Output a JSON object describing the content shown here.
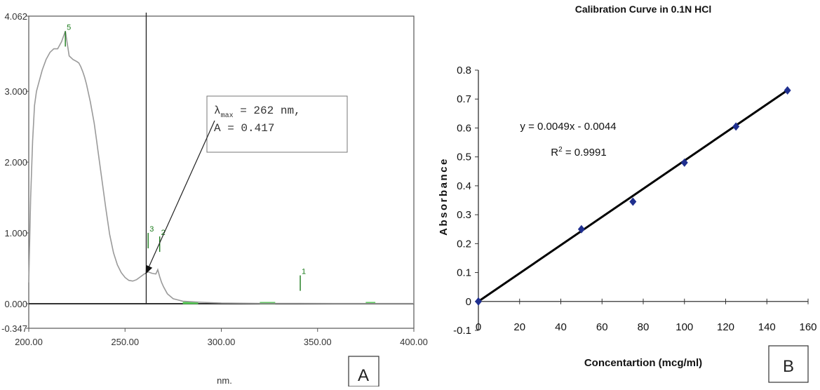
{
  "chart_data": [
    {
      "panel": "A",
      "type": "line",
      "title": "",
      "xlabel": "nm.",
      "ylabel": "",
      "xlim": [
        200,
        400
      ],
      "ylim": [
        -0.347,
        4.062
      ],
      "x_ticks": [
        "200.00",
        "250.00",
        "300.00",
        "350.00",
        "400.00"
      ],
      "y_ticks": [
        "4.062",
        "3.000",
        "2.000",
        "1.000",
        "0.000",
        "-0.347"
      ],
      "y_tick_values": [
        4.062,
        3.0,
        2.0,
        1.0,
        0.0,
        -0.347
      ],
      "marker_line_x": 261,
      "peak_labels": [
        "5",
        "3",
        "2",
        "1"
      ],
      "peak_positions": [
        [
          219,
          3.85
        ],
        [
          262,
          1.0
        ],
        [
          268,
          0.95
        ],
        [
          341,
          0.4
        ]
      ],
      "annotation": {
        "lambda": "λ",
        "sub": "max",
        "rest": " = 262 nm,",
        "line2": "A = 0.417",
        "target_x": 260,
        "target_y": 0.42
      },
      "series": [
        {
          "x": [
            200,
            201,
            202,
            203,
            204,
            205,
            207,
            209,
            211,
            213,
            215,
            217,
            219,
            221,
            223,
            225,
            226,
            227,
            228,
            229,
            230,
            232,
            234,
            235,
            236,
            238,
            240,
            242,
            244,
            246,
            248,
            250,
            252,
            254,
            256,
            258,
            260,
            262,
            264,
            266,
            267,
            268,
            269,
            270,
            272,
            275,
            280,
            290,
            300,
            320,
            340,
            360,
            380,
            400
          ],
          "values": [
            0.3,
            1.5,
            2.3,
            2.8,
            3.0,
            3.1,
            3.3,
            3.45,
            3.55,
            3.6,
            3.6,
            3.7,
            3.85,
            3.5,
            3.45,
            3.42,
            3.4,
            3.35,
            3.28,
            3.2,
            3.1,
            2.85,
            2.55,
            2.35,
            2.15,
            1.75,
            1.35,
            0.98,
            0.72,
            0.55,
            0.44,
            0.37,
            0.33,
            0.32,
            0.34,
            0.38,
            0.42,
            0.45,
            0.43,
            0.42,
            0.48,
            0.38,
            0.3,
            0.24,
            0.14,
            0.07,
            0.035,
            0.02,
            0.01,
            0.005,
            0.005,
            0.003,
            0.003,
            0.003
          ]
        }
      ],
      "corner_label": "A"
    },
    {
      "panel": "B",
      "type": "scatter",
      "title": "Calibration Curve in 0.1N HCl",
      "xlabel": "Concentartion (mcg/ml)",
      "ylabel": "Absorbance",
      "xlim": [
        0,
        160
      ],
      "ylim": [
        -0.1,
        0.8
      ],
      "x_ticks": [
        0,
        20,
        40,
        60,
        80,
        100,
        120,
        140,
        160
      ],
      "y_ticks": [
        -0.1,
        0,
        0.1,
        0.2,
        0.3,
        0.4,
        0.5,
        0.6,
        0.7,
        0.8
      ],
      "grid": false,
      "series": [
        {
          "x": [
            0,
            50,
            75,
            100,
            125,
            150
          ],
          "values": [
            0.0,
            0.25,
            0.345,
            0.48,
            0.605,
            0.73
          ]
        }
      ],
      "trendline": {
        "slope": 0.0049,
        "intercept": -0.0044
      },
      "equation": "y = 0.0049x - 0.0044",
      "r2_prefix": "R",
      "r2_sup": "2",
      "r2_value": " = 0.9991",
      "corner_label": "B"
    }
  ],
  "colors": {
    "spectrum": "#9a9a9a",
    "peak_marker": "#1a7a1a",
    "baseline_green": "#55cc55",
    "point": "#1f2f8f",
    "trend": "#000000",
    "fit_blue": "#3344bb"
  }
}
